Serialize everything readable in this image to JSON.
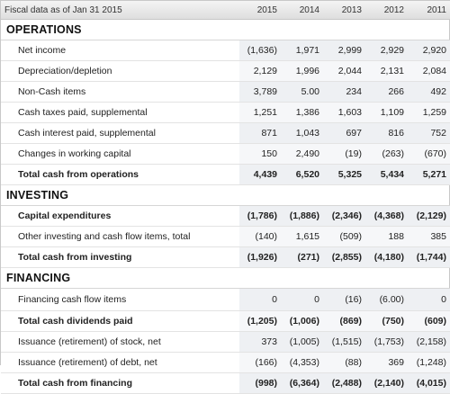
{
  "header": {
    "label": "Fiscal data as of Jan 31 2015",
    "years": [
      "2015",
      "2014",
      "2013",
      "2012",
      "2011"
    ]
  },
  "sections": [
    {
      "title": "OPERATIONS",
      "rows": [
        {
          "label": "Net income",
          "values": [
            "(1,636)",
            "1,971",
            "2,999",
            "2,929",
            "2,920"
          ]
        },
        {
          "label": "Depreciation/depletion",
          "values": [
            "2,129",
            "1,996",
            "2,044",
            "2,131",
            "2,084"
          ]
        },
        {
          "label": "Non-Cash items",
          "values": [
            "3,789",
            "5.00",
            "234",
            "266",
            "492"
          ]
        },
        {
          "label": "Cash taxes paid, supplemental",
          "values": [
            "1,251",
            "1,386",
            "1,603",
            "1,109",
            "1,259"
          ]
        },
        {
          "label": "Cash interest paid, supplemental",
          "values": [
            "871",
            "1,043",
            "697",
            "816",
            "752"
          ]
        },
        {
          "label": "Changes in working capital",
          "values": [
            "150",
            "2,490",
            "(19)",
            "(263)",
            "(670)"
          ]
        },
        {
          "label": "Total cash from operations",
          "values": [
            "4,439",
            "6,520",
            "5,325",
            "5,434",
            "5,271"
          ],
          "total": true
        }
      ]
    },
    {
      "title": "INVESTING",
      "rows": [
        {
          "label": "Capital expenditures",
          "values": [
            "(1,786)",
            "(1,886)",
            "(2,346)",
            "(4,368)",
            "(2,129)"
          ],
          "total": true
        },
        {
          "label": "Other investing and cash flow items, total",
          "values": [
            "(140)",
            "1,615",
            "(509)",
            "188",
            "385"
          ]
        },
        {
          "label": "Total cash from investing",
          "values": [
            "(1,926)",
            "(271)",
            "(2,855)",
            "(4,180)",
            "(1,744)"
          ],
          "total": true
        }
      ]
    },
    {
      "title": "FINANCING",
      "rows": [
        {
          "label": "Financing cash flow items",
          "values": [
            "0",
            "0",
            "(16)",
            "(6.00)",
            "0"
          ]
        },
        {
          "label": "Total cash dividends paid",
          "values": [
            "(1,205)",
            "(1,006)",
            "(869)",
            "(750)",
            "(609)"
          ],
          "total": true
        },
        {
          "label": "Issuance (retirement) of stock, net",
          "values": [
            "373",
            "(1,005)",
            "(1,515)",
            "(1,753)",
            "(2,158)"
          ]
        },
        {
          "label": "Issuance (retirement) of debt, net",
          "values": [
            "(166)",
            "(4,353)",
            "(88)",
            "369",
            "(1,248)"
          ]
        },
        {
          "label": "Total cash from financing",
          "values": [
            "(998)",
            "(6,364)",
            "(2,488)",
            "(2,140)",
            "(4,015)"
          ],
          "total": true
        }
      ]
    }
  ]
}
